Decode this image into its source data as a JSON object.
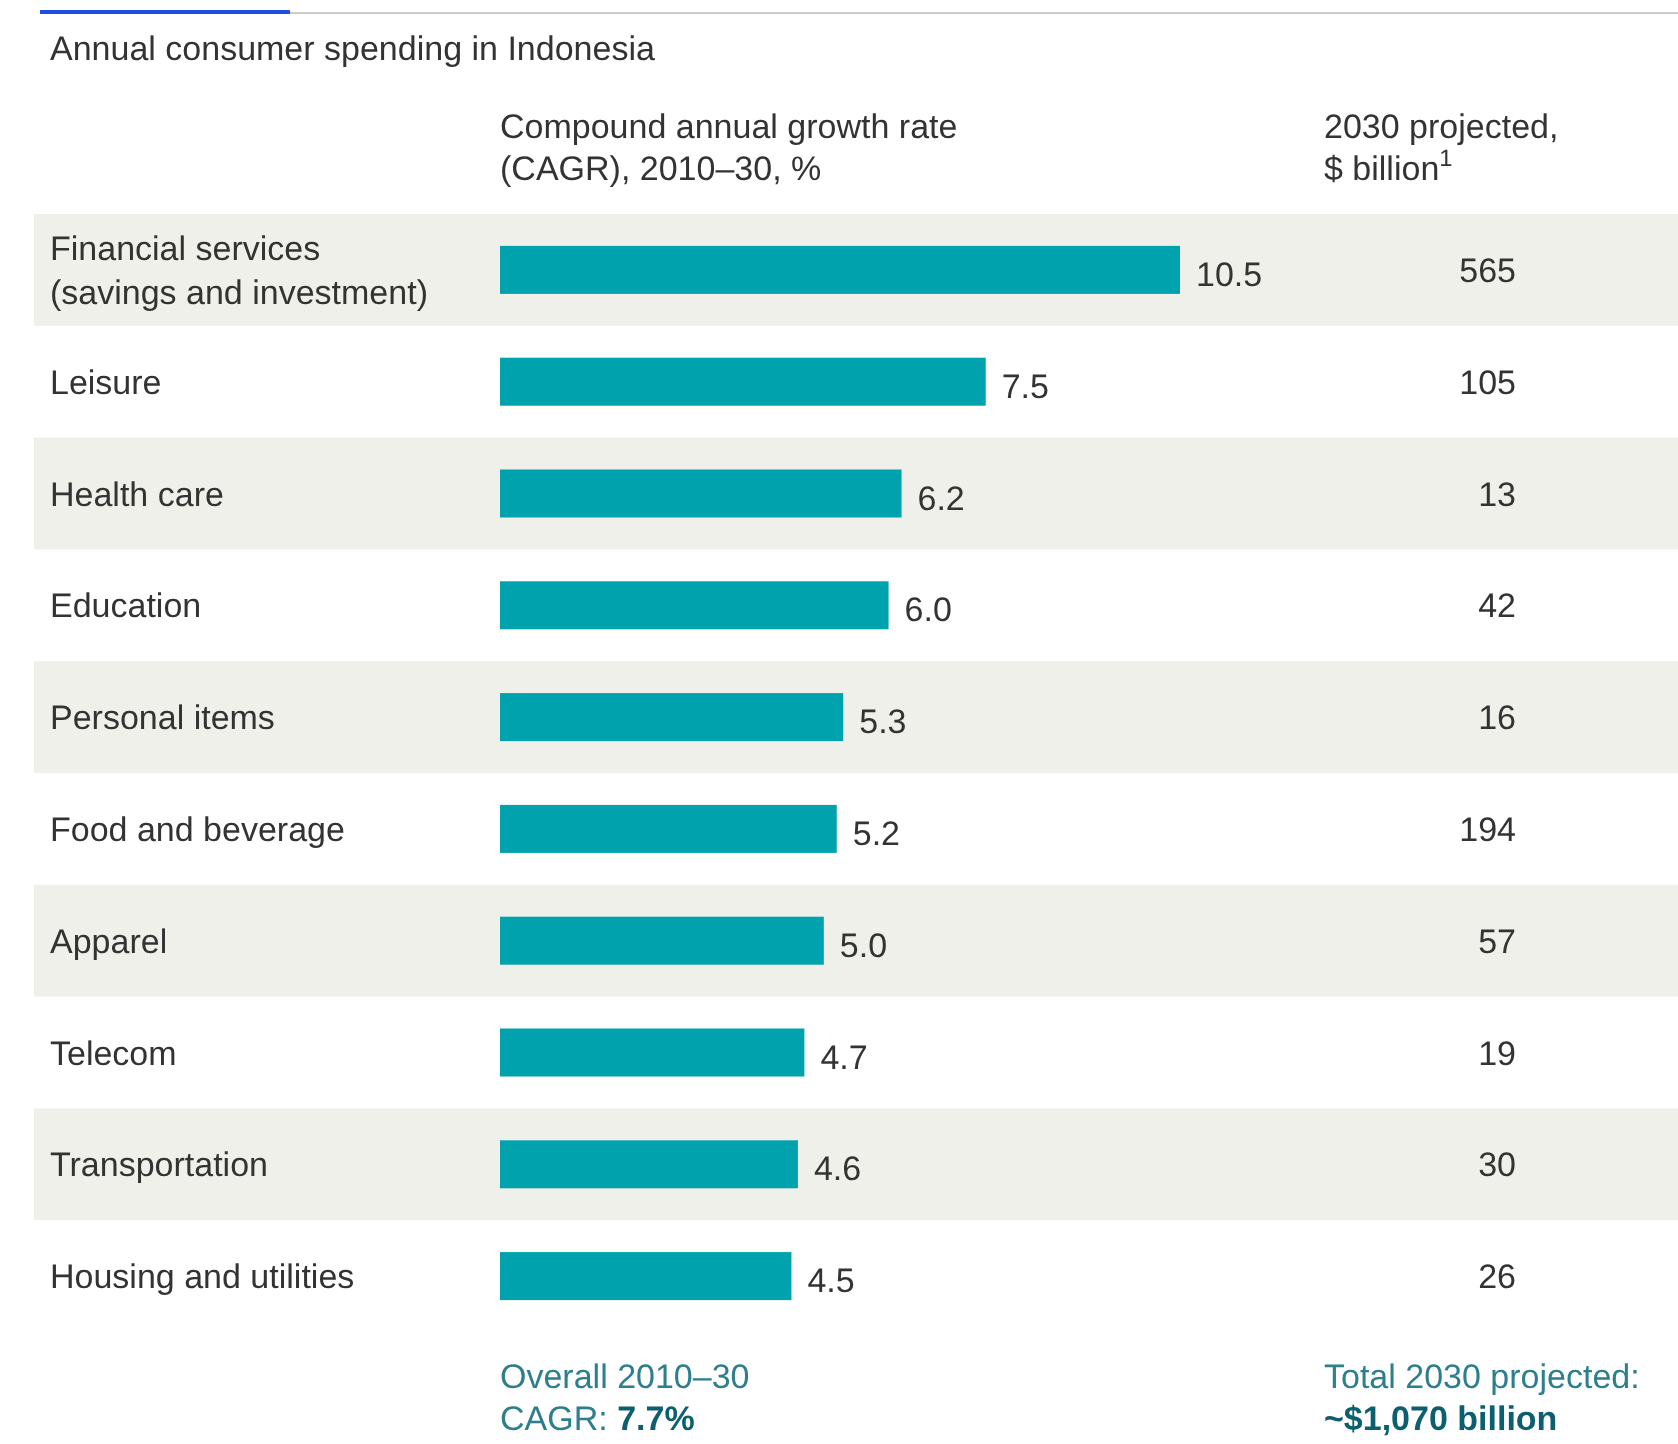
{
  "chart_data": [
    {
      "type": "bar",
      "orientation": "horizontal",
      "title": "Annual consumer spending in Indonesia",
      "subtitle": "Compound annual growth rate (CAGR), 2010–30, %",
      "categories": [
        "Financial services (savings and investment)",
        "Leisure",
        "Health care",
        "Education",
        "Personal items",
        "Food and beverage",
        "Apparel",
        "Telecom",
        "Transportation",
        "Housing and utilities"
      ],
      "values": [
        10.5,
        7.5,
        6.2,
        6.0,
        5.3,
        5.2,
        5.0,
        4.7,
        4.6,
        4.5
      ],
      "value_labels": [
        "10.5",
        "7.5",
        "6.2",
        "6.0",
        "5.3",
        "5.2",
        "5.0",
        "4.7",
        "4.6",
        "4.5"
      ],
      "color": "#00a2ad",
      "annotations": [
        "Overall 2010–30 CAGR:",
        "7.7%"
      ]
    },
    {
      "type": "other",
      "subtitle": "2030 projected, $ billion$^{1}$",
      "values": [
        565,
        105,
        13,
        42,
        16,
        194,
        57,
        19,
        30,
        26
      ],
      "data_labels": true,
      "annotations": [
        "Total 2030 projected:",
        "~$1,070 billion"
      ]
    }
  ]
}
